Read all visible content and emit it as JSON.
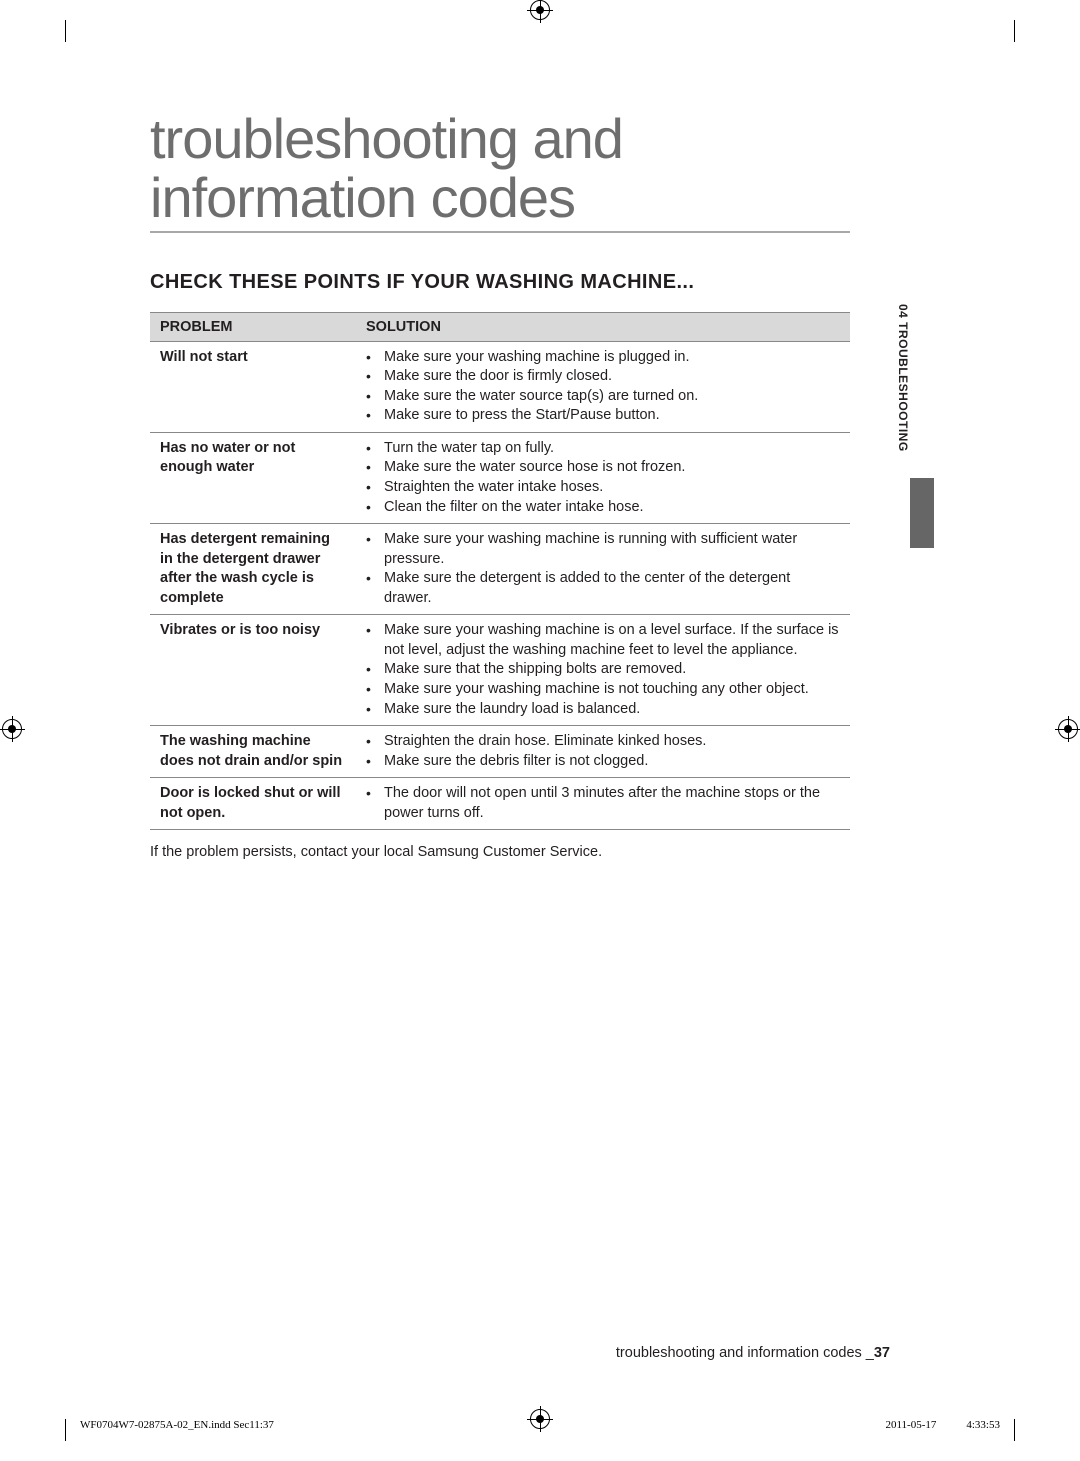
{
  "page": {
    "title_line1": "troubleshooting and",
    "title_line2": "information codes",
    "section_heading": "CHECK THESE POINTS IF YOUR WASHING MACHINE...",
    "footer_note": "If the problem persists, contact your local Samsung Customer Service.",
    "bottom_footer_text": "troubleshooting and information codes _",
    "page_number": "37",
    "side_tab": "04  TROUBLESHOOTING"
  },
  "table": {
    "header_problem": "PROBLEM",
    "header_solution": "SOLUTION",
    "rows": [
      {
        "problem": "Will not start",
        "solutions": [
          "Make sure your washing machine is plugged in.",
          "Make sure the door is firmly closed.",
          "Make sure the water source tap(s) are turned on.",
          "Make sure to press the Start/Pause button."
        ]
      },
      {
        "problem": "Has no water or not enough water",
        "solutions": [
          "Turn the water tap on fully.",
          "Make sure the water source hose is not frozen.",
          "Straighten the water intake hoses.",
          "Clean the filter on the water intake hose."
        ]
      },
      {
        "problem": "Has detergent remaining in the detergent drawer after the wash cycle is complete",
        "solutions": [
          "Make sure your washing machine is running with sufficient water pressure.",
          "Make sure the detergent is added to the center of the detergent drawer."
        ]
      },
      {
        "problem": "Vibrates or is too noisy",
        "solutions": [
          "Make sure your washing machine is on a level surface. If the surface is not level, adjust the washing machine feet to level the appliance.",
          "Make sure that the shipping bolts are removed.",
          "Make sure your washing machine is not touching any other object.",
          "Make sure the laundry load is balanced."
        ]
      },
      {
        "problem": "The washing machine does not drain and/or spin",
        "solutions": [
          "Straighten the drain hose. Eliminate kinked hoses.",
          "Make sure the debris filter is not clogged."
        ]
      },
      {
        "problem": "Door is locked shut or will not open.",
        "solutions": [
          "The door will not open until 3 minutes after the machine stops or the power turns off."
        ]
      }
    ]
  },
  "print_info": {
    "file": "WF0704W7-02875A-02_EN.indd   Sec11:37",
    "date": "2011-05-17",
    "time": "4:33:53"
  },
  "colors": {
    "title_color": "#6e6e6e",
    "text_color": "#231f20",
    "table_header_bg": "#d9d9d9",
    "border_color": "#888888",
    "side_bar_color": "#666666"
  }
}
